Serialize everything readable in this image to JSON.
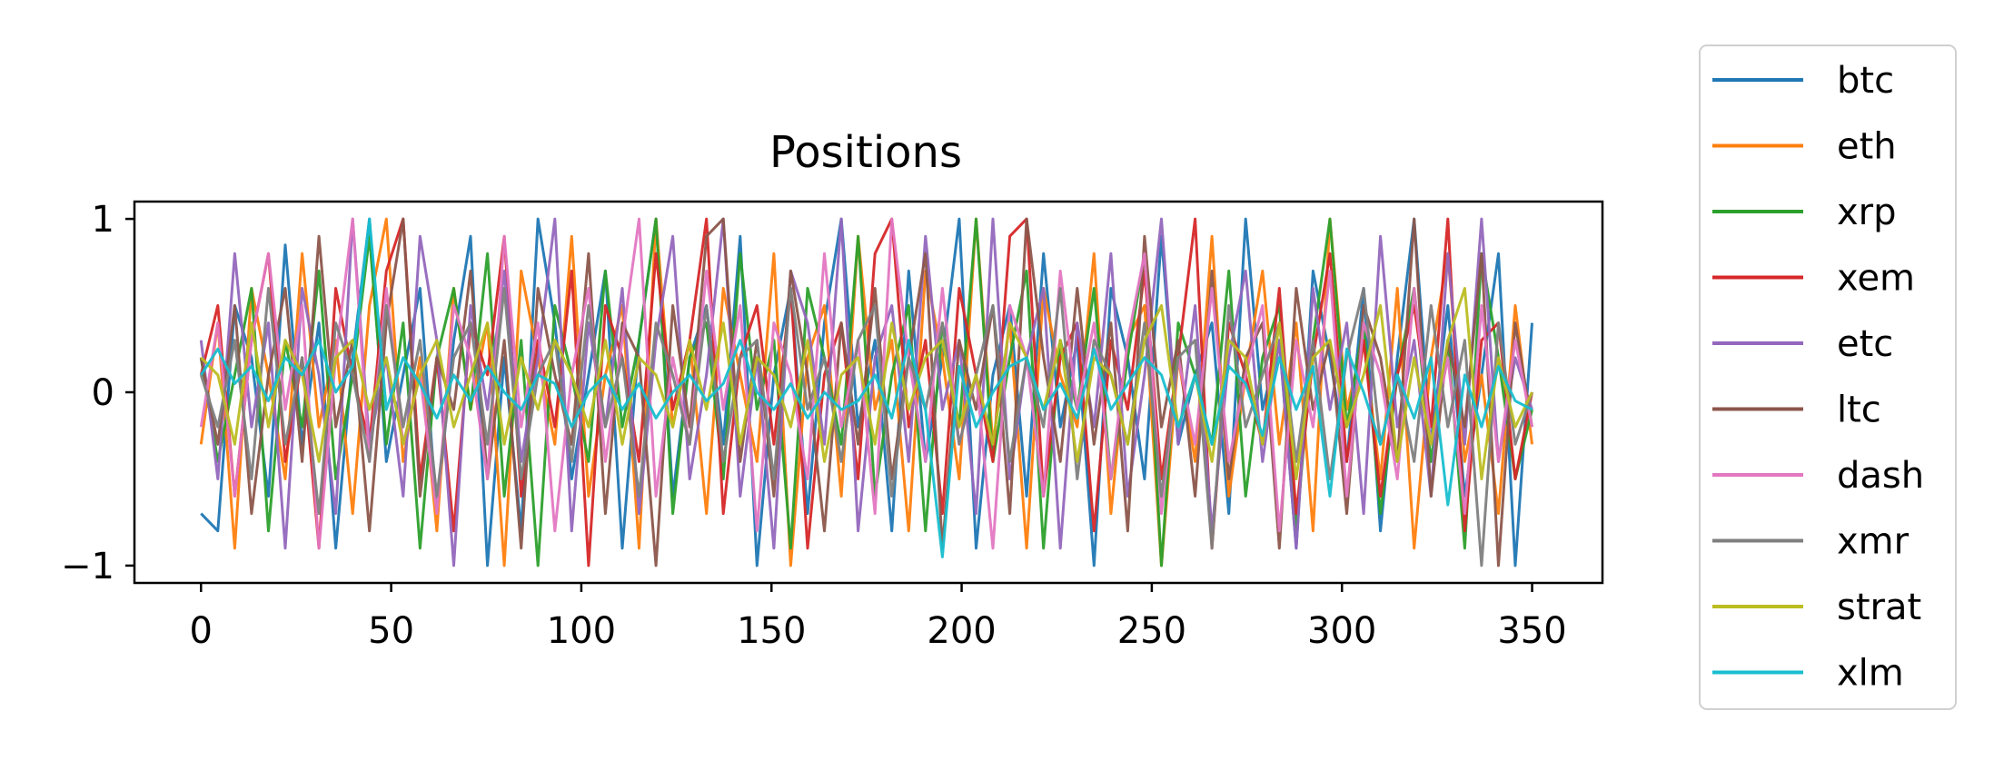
{
  "chart_data": {
    "type": "line",
    "title": "Positions",
    "xlabel": "",
    "ylabel": "",
    "xlim": [
      -17.5,
      368.5
    ],
    "ylim": [
      -1.1,
      1.1
    ],
    "xticks": [
      0,
      50,
      100,
      150,
      200,
      250,
      300,
      350
    ],
    "yticks": [
      1,
      0,
      -1
    ],
    "x_tick_labels": [
      "0",
      "50",
      "100",
      "150",
      "200",
      "250",
      "300",
      "350"
    ],
    "y_tick_labels": [
      "1",
      "0",
      "−1"
    ],
    "x_range": [
      0,
      350
    ],
    "legend_position": "outside-right",
    "grid": false,
    "series": [
      {
        "name": "btc",
        "color": "#1f77b4",
        "values": [
          -0.7,
          -0.8,
          0.5,
          0.2,
          -0.6,
          0.85,
          -0.3,
          0.4,
          -0.9,
          0.2,
          1.0,
          -0.4,
          0.1,
          0.6,
          -0.7,
          0.3,
          0.9,
          -1.0,
          0.2,
          -0.8,
          1.0,
          0.4,
          -0.5,
          0.1,
          0.7,
          -0.9,
          0.3,
          1.0,
          -0.6,
          0.2,
          0.5,
          -0.3,
          0.9,
          -1.0,
          0.1,
          0.6,
          -0.7,
          0.4,
          1.0,
          -0.2,
          0.3,
          -0.8,
          0.7,
          -0.4,
          0.2,
          1.0,
          -0.9,
          0.1,
          0.5,
          -0.6,
          0.8,
          -0.2,
          0.3,
          -1.0,
          0.6,
          0.2,
          -0.5,
          0.9,
          -0.3,
          0.1,
          0.4,
          -0.7,
          1.0,
          -0.1,
          0.3,
          -0.9,
          0.7,
          0.2,
          -0.4,
          0.6,
          -0.8,
          0.2,
          1.0,
          -0.3,
          0.5,
          -0.6,
          0.1,
          0.8,
          -1.0,
          0.4
        ]
      },
      {
        "name": "eth",
        "color": "#ff7f0e",
        "values": [
          -0.3,
          0.4,
          -0.9,
          0.6,
          0.1,
          -0.5,
          0.8,
          -0.2,
          0.3,
          -0.7,
          0.5,
          1.0,
          -0.4,
          0.2,
          -0.8,
          0.6,
          -0.1,
          0.4,
          -1.0,
          0.7,
          0.2,
          -0.3,
          0.9,
          -0.6,
          0.1,
          0.5,
          -0.9,
          1.0,
          -0.2,
          0.3,
          -0.7,
          0.6,
          0.1,
          -0.4,
          0.8,
          -1.0,
          0.2,
          0.5,
          -0.6,
          0.9,
          -0.1,
          0.3,
          -0.8,
          0.7,
          0.2,
          -0.5,
          1.0,
          -0.3,
          0.4,
          -0.9,
          0.6,
          0.1,
          -0.2,
          0.8,
          -0.7,
          0.3,
          0.5,
          -1.0,
          0.2,
          -0.4,
          0.9,
          -0.6,
          0.1,
          0.7,
          -0.3,
          0.4,
          -0.8,
          1.0,
          -0.1,
          0.3,
          -0.5,
          0.6,
          -0.9,
          0.2,
          0.8,
          -0.4,
          0.1,
          -0.7,
          0.5,
          -0.3
        ]
      },
      {
        "name": "xrp",
        "color": "#2ca02c",
        "values": [
          0.2,
          -0.4,
          0.1,
          0.6,
          -0.8,
          0.3,
          -0.2,
          0.7,
          -0.5,
          0.1,
          0.9,
          -0.3,
          0.4,
          -0.9,
          0.2,
          0.6,
          -0.1,
          0.8,
          -0.6,
          0.3,
          -1.0,
          0.5,
          0.1,
          -0.4,
          0.7,
          -0.2,
          0.3,
          1.0,
          -0.7,
          0.2,
          0.4,
          -0.5,
          0.8,
          -0.1,
          0.3,
          -0.9,
          0.6,
          0.2,
          -0.3,
          0.9,
          -0.6,
          0.1,
          0.5,
          -0.8,
          0.4,
          -0.2,
          1.0,
          -0.4,
          0.2,
          0.7,
          -0.9,
          0.3,
          -0.1,
          0.6,
          -0.5,
          0.2,
          0.8,
          -1.0,
          0.4,
          0.1,
          -0.3,
          0.7,
          -0.6,
          0.2,
          0.5,
          -0.8,
          0.3,
          1.0,
          -0.2,
          0.4,
          -0.7,
          0.1,
          0.6,
          -0.4,
          0.3,
          -0.9,
          0.8,
          0.2,
          -0.5,
          -0.1
        ]
      },
      {
        "name": "xem",
        "color": "#d62728",
        "values": [
          0.1,
          0.5,
          -0.6,
          0.3,
          0.8,
          -0.4,
          0.2,
          -0.9,
          0.6,
          0.1,
          -0.3,
          0.7,
          1.0,
          -0.5,
          0.2,
          -0.8,
          0.4,
          0.1,
          0.9,
          -0.6,
          0.3,
          -0.2,
          0.7,
          -1.0,
          0.5,
          0.2,
          -0.4,
          0.8,
          -0.1,
          0.3,
          1.0,
          -0.7,
          0.2,
          0.5,
          -0.3,
          0.6,
          -0.9,
          0.1,
          0.4,
          -0.5,
          0.8,
          1.0,
          -0.2,
          0.3,
          -0.7,
          0.6,
          0.1,
          -0.4,
          0.9,
          1.0,
          -0.6,
          0.2,
          0.4,
          -0.8,
          0.3,
          -0.1,
          0.7,
          -0.5,
          0.2,
          1.0,
          -0.9,
          0.4,
          0.1,
          -0.3,
          0.6,
          -0.7,
          0.2,
          0.8,
          -0.4,
          0.3,
          -0.6,
          0.1,
          0.5,
          -0.2,
          1.0,
          -0.8,
          0.3,
          0.4,
          -0.5,
          0.0
        ]
      },
      {
        "name": "etc",
        "color": "#9467bd",
        "values": [
          0.3,
          -0.5,
          0.8,
          -0.2,
          0.4,
          -0.9,
          0.6,
          0.1,
          -0.7,
          1.0,
          -0.3,
          0.2,
          -0.6,
          0.9,
          0.3,
          -1.0,
          0.5,
          -0.1,
          0.7,
          -0.4,
          0.2,
          1.0,
          -0.8,
          0.4,
          -0.2,
          0.6,
          -0.7,
          0.3,
          0.9,
          -0.5,
          0.1,
          1.0,
          -0.6,
          0.2,
          -0.9,
          0.7,
          0.4,
          -0.3,
          1.0,
          -0.8,
          0.2,
          0.5,
          -0.4,
          0.9,
          -0.1,
          0.3,
          -0.7,
          1.0,
          -0.5,
          0.2,
          0.6,
          -0.9,
          0.4,
          -0.2,
          0.8,
          -0.6,
          0.1,
          1.0,
          -0.3,
          0.5,
          -0.8,
          0.2,
          0.7,
          -0.4,
          0.3,
          -0.9,
          0.6,
          -0.1,
          0.4,
          -0.7,
          0.9,
          -0.2,
          0.3,
          -0.6,
          0.8,
          -0.3,
          1.0,
          -0.4,
          0.2,
          -0.1
        ]
      },
      {
        "name": "ltc",
        "color": "#8c564b",
        "values": [
          0.2,
          -0.3,
          0.5,
          -0.7,
          0.1,
          0.6,
          -0.4,
          0.9,
          -0.2,
          0.3,
          -0.8,
          0.4,
          1.0,
          -0.6,
          0.2,
          -0.1,
          0.7,
          -0.5,
          0.3,
          -0.9,
          0.6,
          0.1,
          -0.3,
          0.8,
          -0.7,
          0.4,
          0.2,
          -1.0,
          0.5,
          -0.2,
          0.9,
          1.0,
          -0.4,
          0.3,
          -0.6,
          0.7,
          0.1,
          -0.8,
          0.4,
          -0.3,
          0.6,
          -0.5,
          0.2,
          0.8,
          -0.9,
          0.3,
          -0.1,
          0.5,
          -0.7,
          1.0,
          0.2,
          -0.4,
          0.6,
          -0.3,
          0.4,
          -0.8,
          0.9,
          -0.2,
          0.3,
          -0.6,
          0.7,
          -0.5,
          0.2,
          0.4,
          -0.9,
          0.6,
          -0.1,
          0.3,
          -0.7,
          0.5,
          0.2,
          -0.4,
          1.0,
          -0.6,
          0.3,
          -0.2,
          0.8,
          -1.0,
          0.4,
          -0.2
        ]
      },
      {
        "name": "dash",
        "color": "#e377c2",
        "values": [
          -0.2,
          0.4,
          -0.6,
          0.3,
          0.8,
          -0.1,
          0.5,
          -0.9,
          0.2,
          1.0,
          -0.4,
          0.6,
          -0.3,
          0.1,
          -0.7,
          0.5,
          0.2,
          -0.5,
          0.9,
          -0.2,
          0.4,
          -0.8,
          0.1,
          0.6,
          -0.4,
          0.3,
          1.0,
          -0.6,
          0.2,
          -0.3,
          0.7,
          -0.1,
          0.5,
          -0.8,
          0.4,
          0.1,
          -0.5,
          0.8,
          -0.2,
          0.3,
          -0.7,
          1.0,
          0.2,
          -0.4,
          0.6,
          -0.3,
          0.1,
          -0.9,
          0.5,
          0.2,
          -0.6,
          0.7,
          -0.1,
          0.4,
          -0.5,
          0.3,
          0.8,
          -0.7,
          0.2,
          -0.3,
          0.6,
          -0.4,
          0.1,
          0.5,
          -0.8,
          0.3,
          -0.2,
          0.7,
          -0.6,
          0.4,
          0.1,
          -0.5,
          0.6,
          -0.3,
          0.2,
          -0.7,
          0.5,
          -0.4,
          0.3,
          -0.2
        ]
      },
      {
        "name": "xmr",
        "color": "#7f7f7f",
        "values": [
          0.1,
          -0.2,
          0.3,
          -0.5,
          0.6,
          -0.3,
          0.2,
          -0.7,
          0.4,
          0.1,
          -0.4,
          0.5,
          -0.2,
          0.3,
          -0.6,
          0.2,
          0.4,
          -0.3,
          0.6,
          -0.5,
          0.1,
          0.3,
          -0.4,
          0.5,
          -0.2,
          0.2,
          -0.6,
          0.4,
          0.1,
          -0.3,
          0.5,
          -0.4,
          0.2,
          0.3,
          -0.5,
          0.6,
          -0.1,
          0.2,
          -0.4,
          0.3,
          0.5,
          -0.6,
          0.2,
          -0.1,
          0.4,
          -0.3,
          0.1,
          0.5,
          -0.4,
          0.2,
          -0.2,
          0.6,
          -0.5,
          0.3,
          0.1,
          -0.3,
          0.4,
          -0.6,
          0.2,
          0.3,
          -0.9,
          0.5,
          -0.2,
          0.1,
          0.4,
          -0.4,
          0.3,
          -0.5,
          0.2,
          0.6,
          -0.3,
          0.1,
          -0.4,
          0.5,
          -0.2,
          0.3,
          -1.0,
          0.4,
          -0.3,
          0.0
        ]
      },
      {
        "name": "strat",
        "color": "#bcbd22",
        "values": [
          0.2,
          0.1,
          -0.3,
          0.4,
          -0.2,
          0.3,
          0.1,
          -0.4,
          0.2,
          0.3,
          -0.1,
          0.2,
          -0.3,
          0.1,
          0.3,
          -0.2,
          0.1,
          0.4,
          -0.3,
          0.2,
          -0.1,
          0.3,
          0.1,
          -0.2,
          0.3,
          -0.3,
          0.2,
          0.1,
          -0.2,
          0.3,
          -0.1,
          0.4,
          -0.3,
          0.2,
          0.1,
          -0.2,
          0.3,
          -0.4,
          0.1,
          0.2,
          -0.3,
          0.4,
          -0.1,
          0.2,
          0.3,
          -0.2,
          0.1,
          -0.3,
          0.4,
          0.2,
          -0.1,
          0.3,
          -0.4,
          0.2,
          0.1,
          -0.3,
          0.3,
          0.5,
          -0.2,
          0.1,
          -0.4,
          0.3,
          0.2,
          -0.3,
          0.4,
          -0.5,
          0.2,
          0.3,
          -0.2,
          0.1,
          0.5,
          -0.4,
          0.2,
          -0.3,
          0.3,
          0.6,
          -0.5,
          0.2,
          -0.2,
          0.0
        ]
      },
      {
        "name": "xlm",
        "color": "#17becf",
        "values": [
          0.1,
          0.25,
          0.05,
          0.15,
          -0.05,
          0.2,
          0.1,
          0.3,
          0.0,
          0.15,
          1.0,
          -0.1,
          0.2,
          0.05,
          -0.15,
          0.1,
          -0.05,
          0.15,
          0.0,
          -0.1,
          0.1,
          0.05,
          -0.2,
          0.0,
          0.1,
          -0.1,
          0.05,
          -0.15,
          0.0,
          0.1,
          -0.05,
          0.05,
          0.3,
          0.0,
          -0.1,
          0.05,
          -0.15,
          0.0,
          -0.1,
          -0.05,
          0.1,
          -0.15,
          0.3,
          -0.1,
          -0.95,
          0.15,
          -0.2,
          0.0,
          0.15,
          0.2,
          -0.1,
          0.05,
          -0.15,
          0.25,
          -0.1,
          0.05,
          0.2,
          0.1,
          -0.2,
          0.1,
          -0.3,
          0.15,
          0.05,
          -0.25,
          0.2,
          -0.1,
          0.15,
          -0.6,
          0.25,
          0.0,
          -0.3,
          0.1,
          -0.15,
          0.2,
          -0.65,
          0.1,
          -0.2,
          0.15,
          -0.05,
          -0.1
        ]
      }
    ]
  }
}
